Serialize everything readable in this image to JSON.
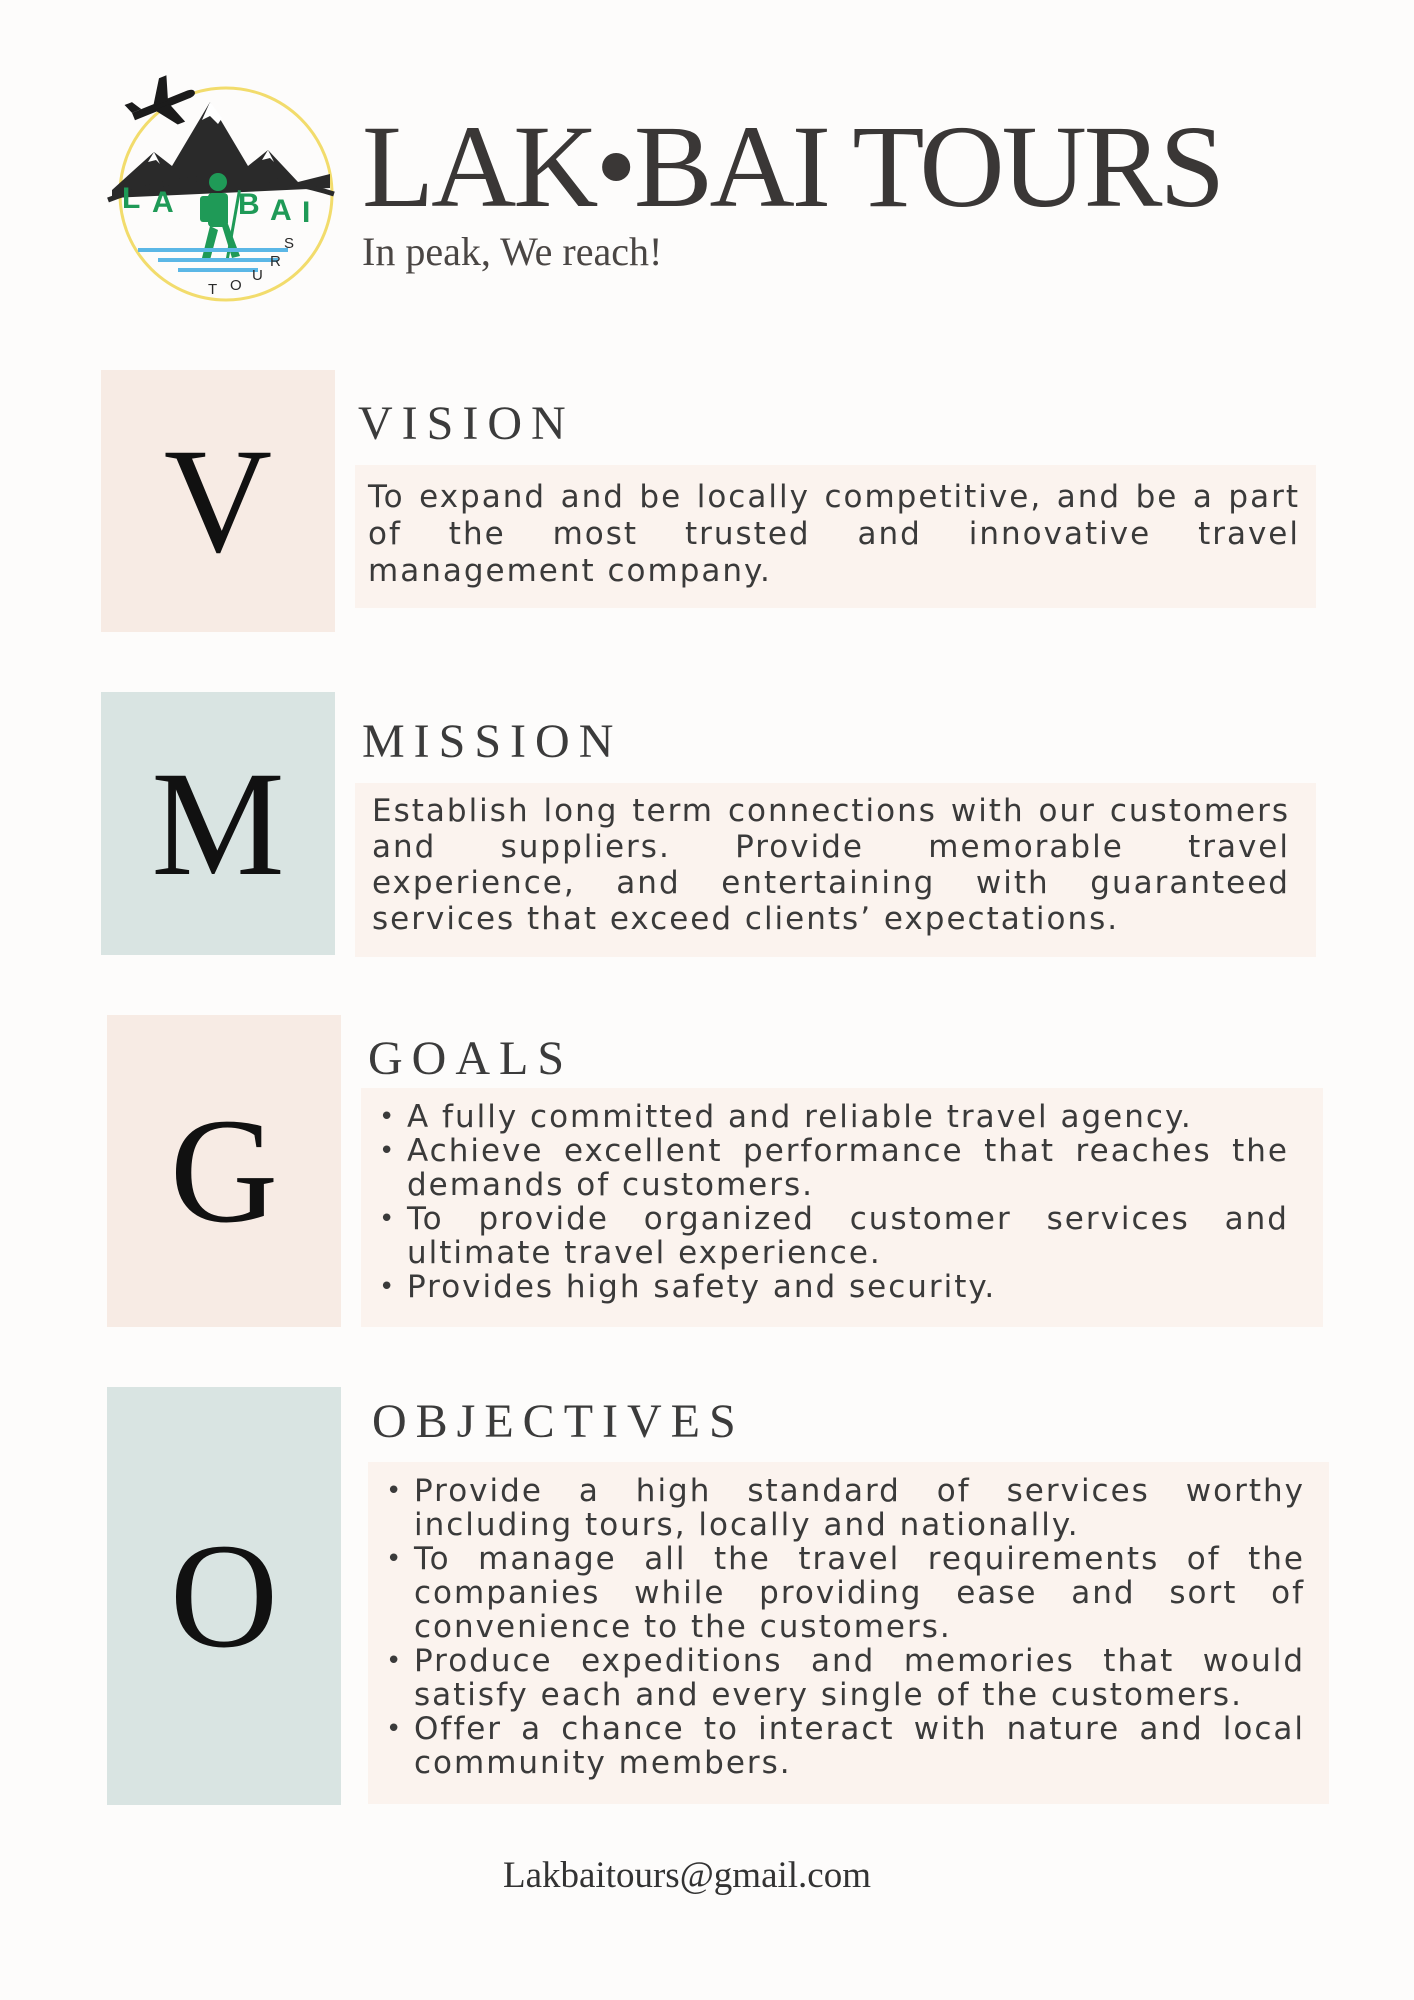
{
  "header": {
    "logo_text": "LAKBAI TOURS",
    "title": "LAK•BAI TOURS",
    "tagline": "In peak, We reach!"
  },
  "vision": {
    "letter": "V",
    "heading": "VISION",
    "text": "To expand and be locally competitive, and be a part of the most trusted and innovative travel management company."
  },
  "mission": {
    "letter": "M",
    "heading": "MISSION",
    "text": "Establish long term connections with our customers and suppliers. Provide memorable travel experience, and entertaining with guaranteed services that exceed clients’ expectations."
  },
  "goals": {
    "letter": "G",
    "heading": "GOALS",
    "items": [
      "A fully committed and reliable travel agency.",
      "Achieve excellent performance that reaches the demands of customers.",
      "To provide organized customer services and ultimate travel experience.",
      "Provides high safety and security."
    ]
  },
  "objectives": {
    "letter": "O",
    "heading": "OBJECTIVES",
    "items": [
      "Provide a high standard of services worthy including tours, locally and nationally.",
      "To manage all the travel requirements of the companies while providing ease and sort of convenience to the customers.",
      "Produce expeditions and memories that would satisfy each and every single of the customers.",
      "Offer a chance to interact with nature and local community members."
    ]
  },
  "footer": {
    "email": "Lakbaitours@gmail.com"
  },
  "colors": {
    "peach_box": "#f7ebe4",
    "sage_box": "#d9e4e2",
    "panel_bg": "#fbf3ee",
    "logo_green": "#1f9a57",
    "logo_ring": "#f2dc6c",
    "logo_water": "#5bb7e6"
  },
  "icons": {
    "logo": "airplane-mountains-hiker-logo"
  }
}
